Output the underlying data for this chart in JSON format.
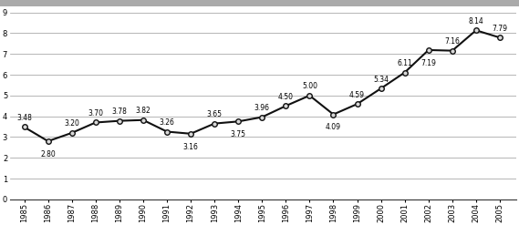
{
  "years": [
    1985,
    1986,
    1987,
    1988,
    1989,
    1990,
    1991,
    1992,
    1993,
    1994,
    1995,
    1996,
    1997,
    1998,
    1999,
    2000,
    2001,
    2002,
    2003,
    2004,
    2005
  ],
  "values": [
    3.48,
    2.8,
    3.2,
    3.7,
    3.78,
    3.82,
    3.26,
    3.16,
    3.65,
    3.75,
    3.96,
    4.5,
    5.0,
    4.09,
    4.59,
    5.34,
    6.11,
    7.19,
    7.16,
    8.14,
    7.79
  ],
  "labels": [
    "3.48",
    "2.80",
    "3.20",
    "3.70",
    "3.78",
    "3.82",
    "3.26",
    "3.16",
    "3.65",
    "3.75",
    "3.96",
    "4.50",
    "5.00",
    "4.09",
    "4.59",
    "5.34",
    "6.11",
    "7.19",
    "7.16",
    "8.14",
    "7.79"
  ],
  "label_offsets_y": [
    1,
    -1,
    1,
    1,
    1,
    1,
    1,
    -1,
    1,
    -1,
    1,
    1,
    1,
    -1,
    1,
    1,
    1,
    -1,
    1,
    1,
    1
  ],
  "ylim": [
    0,
    9
  ],
  "yticks": [
    0,
    1,
    2,
    3,
    4,
    5,
    6,
    7,
    8,
    9
  ],
  "line_color": "#111111",
  "marker_face": "#d8d8d8",
  "marker_edge": "#111111",
  "background_color": "#ffffff",
  "label_fontsize": 5.5,
  "tick_fontsize": 6.0,
  "top_bar_color": "#aaaaaa"
}
